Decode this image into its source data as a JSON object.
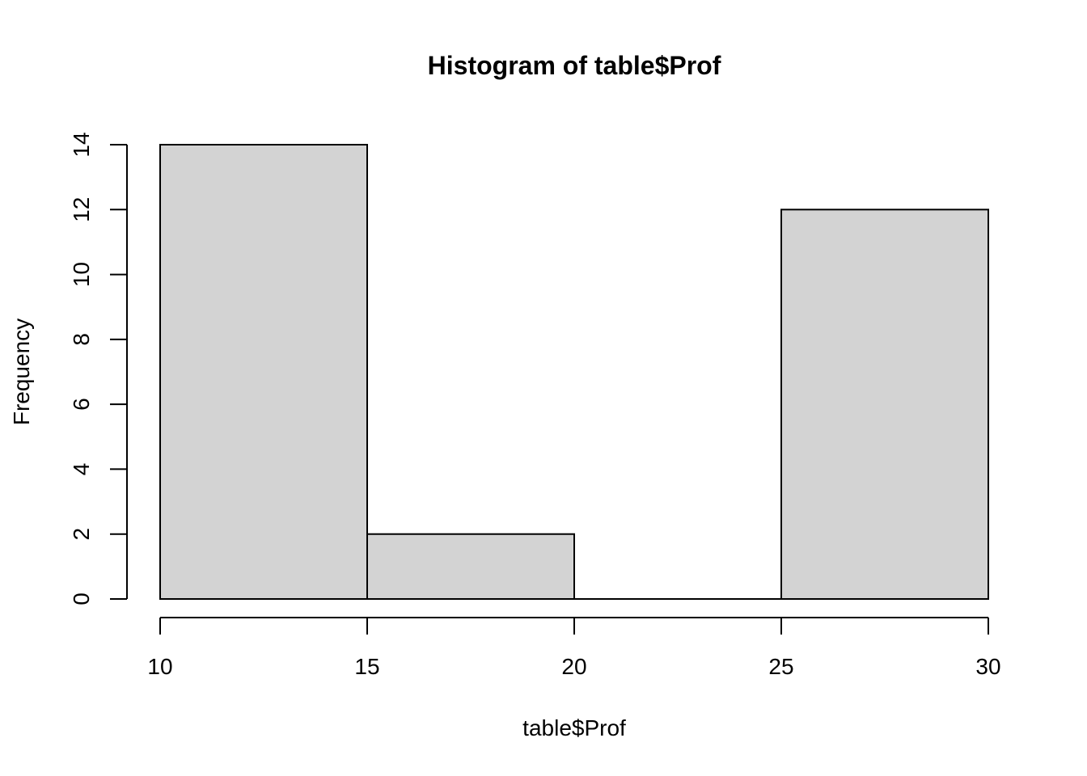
{
  "chart_data": {
    "type": "bar",
    "title": "Histogram of table$Prof",
    "xlabel": "table$Prof",
    "ylabel": "Frequency",
    "bins": [
      {
        "start": 10,
        "end": 15,
        "count": 14
      },
      {
        "start": 15,
        "end": 20,
        "count": 2
      },
      {
        "start": 20,
        "end": 25,
        "count": 0
      },
      {
        "start": 25,
        "end": 30,
        "count": 12
      }
    ],
    "xlim": [
      10,
      30
    ],
    "ylim": [
      0,
      14
    ],
    "x_ticks": [
      10,
      15,
      20,
      25,
      30
    ],
    "y_ticks": [
      0,
      2,
      4,
      6,
      8,
      10,
      12,
      14
    ],
    "bar_color": "#d3d3d3",
    "grid": false,
    "legend": "none"
  }
}
